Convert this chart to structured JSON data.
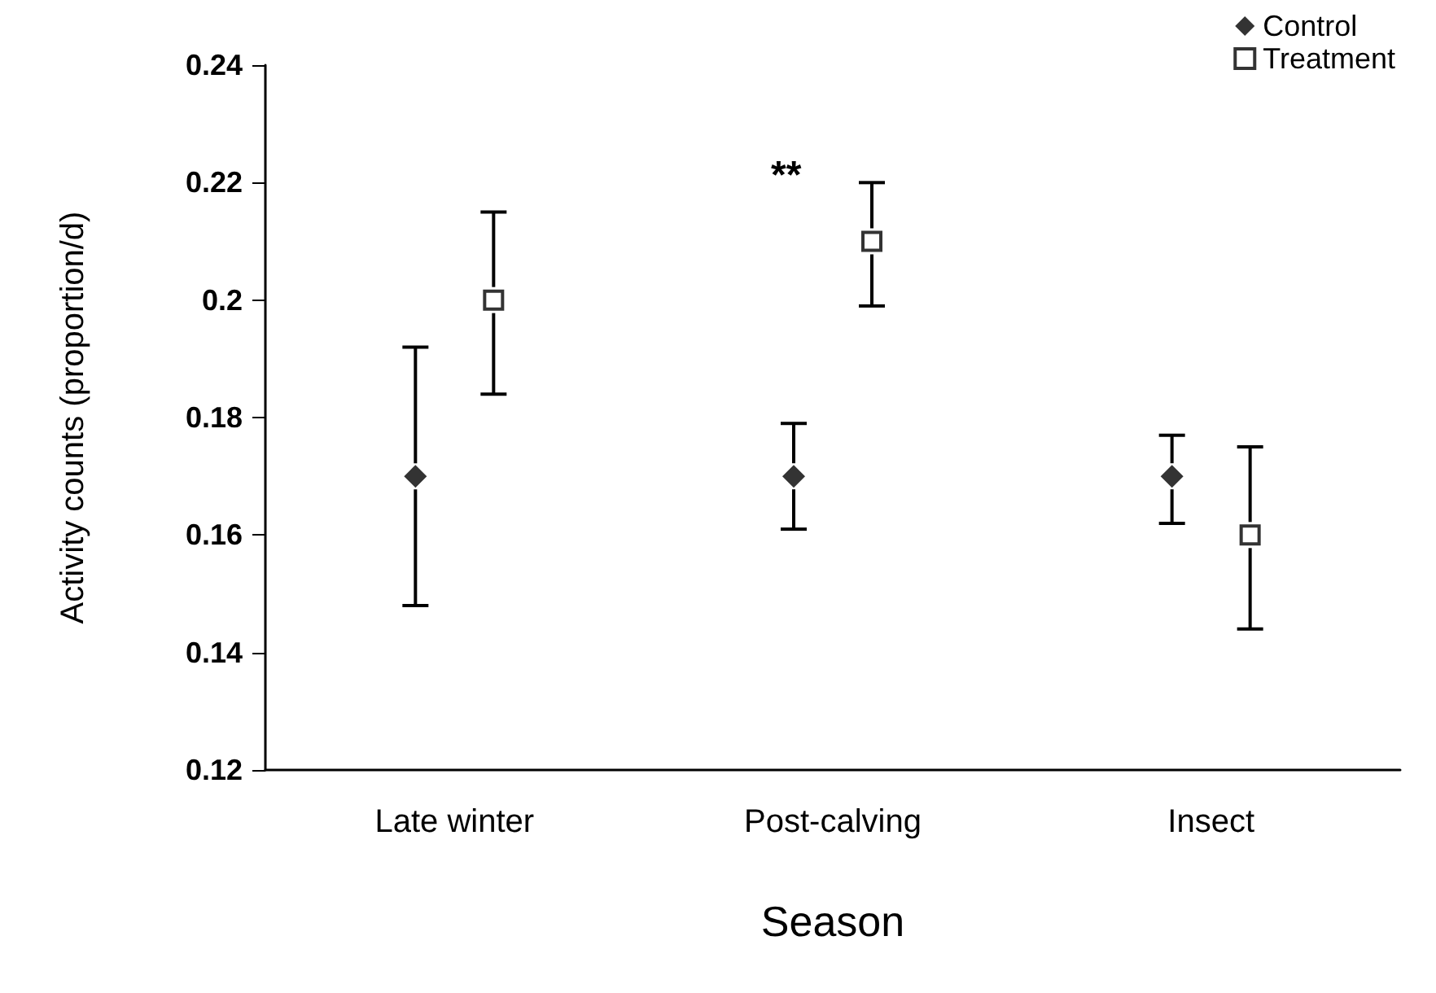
{
  "chart_data": {
    "type": "scatter",
    "xlabel": "Season",
    "ylabel": "Activity counts (proportion/d)",
    "categories": [
      "Late winter",
      "Post-calving",
      "Insect"
    ],
    "series": [
      {
        "name": "Control",
        "color": "#000000",
        "marker": "diamond",
        "values": [
          0.17,
          0.17,
          0.17
        ],
        "errors": [
          [
            0.148,
            0.192
          ],
          [
            0.161,
            0.179
          ],
          [
            0.162,
            0.177
          ]
        ]
      },
      {
        "name": "Treatment",
        "color": "#000000",
        "marker": "square",
        "values": [
          0.2,
          0.21,
          0.16
        ],
        "errors": [
          [
            0.184,
            0.215
          ],
          [
            0.199,
            0.22
          ],
          [
            0.144,
            0.175
          ]
        ]
      }
    ],
    "annotations": [
      "**"
    ],
    "ylim": [
      0.12,
      0.24
    ],
    "yticks": [
      0.12,
      0.14,
      0.16,
      0.18,
      0.2,
      0.22,
      0.24
    ],
    "grid": false,
    "legend": "top right"
  }
}
